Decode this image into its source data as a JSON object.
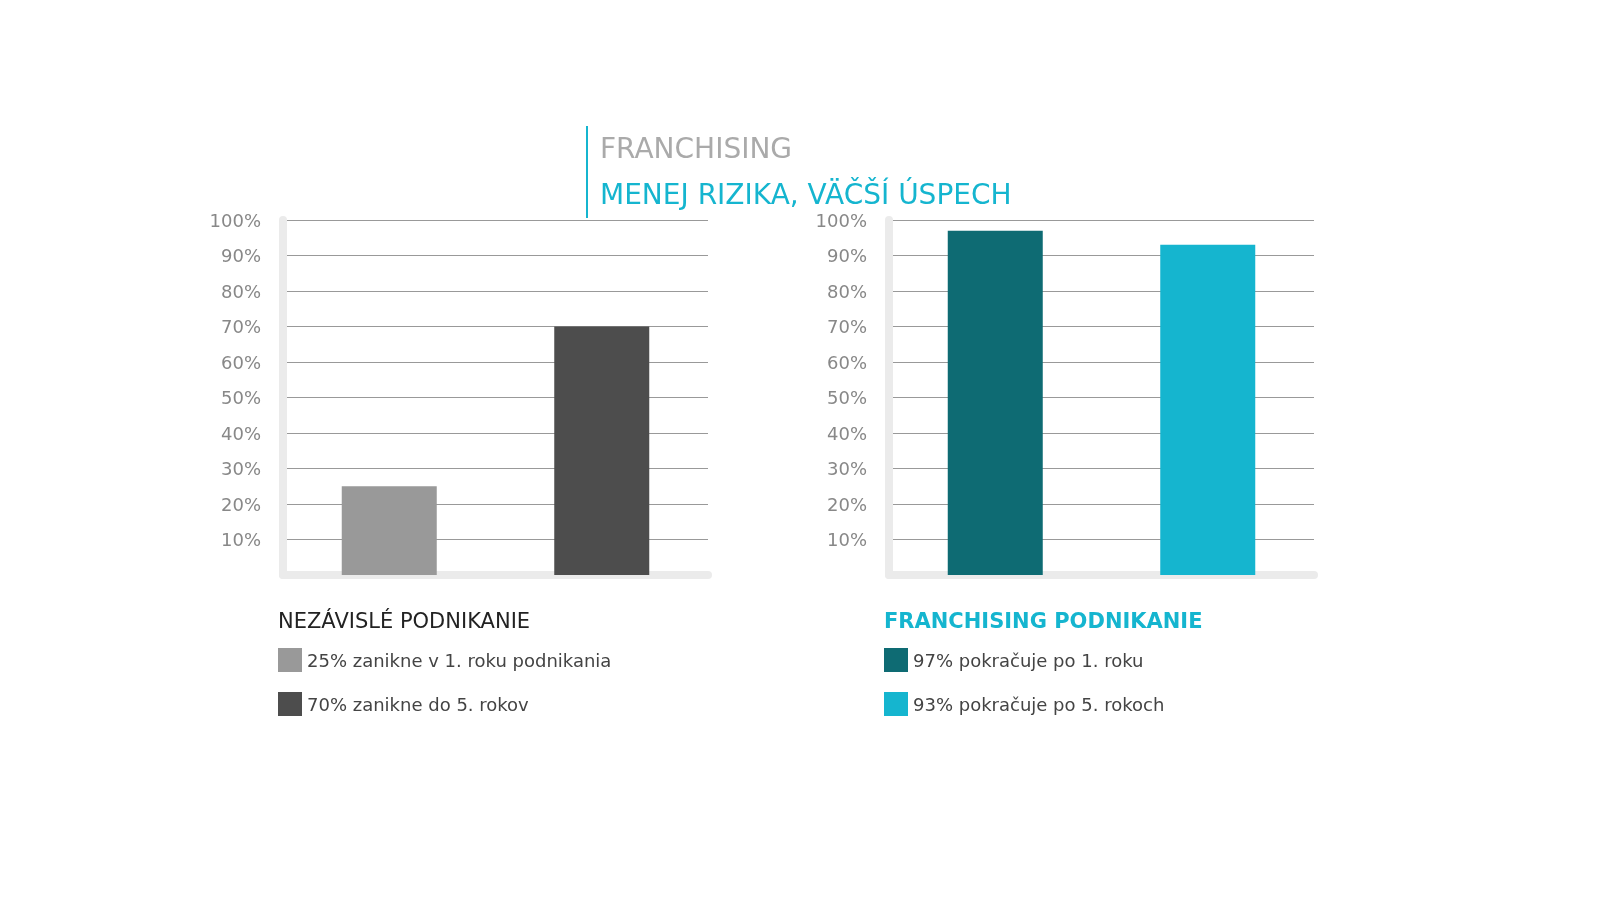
{
  "chart_data": [
    {
      "type": "bar",
      "title": "FRANCHISING",
      "subtitle": "MENEJ RIZIKA, VÄČŠÍ ÚSPECH",
      "legend_title": "NEZÁVISLÉ PODNIKANIE",
      "categories": [
        null,
        null
      ],
      "series": [
        {
          "name": "25% zanikne v 1. roku podnikania",
          "color": "#999999",
          "values": [
            25,
            null
          ]
        },
        {
          "name": "70% zanikne do 5. rokov",
          "color": "#4d4d4d",
          "values": [
            null,
            70
          ]
        }
      ],
      "ylim": [
        0,
        100
      ],
      "yticks": [
        {
          "value": 10,
          "label": "10%"
        },
        {
          "value": 20,
          "label": "20%"
        },
        {
          "value": 30,
          "label": "30%"
        },
        {
          "value": 40,
          "label": "40%"
        },
        {
          "value": 50,
          "label": "50%"
        },
        {
          "value": 60,
          "label": "60%"
        },
        {
          "value": 70,
          "label": "70%"
        },
        {
          "value": 80,
          "label": "80%"
        },
        {
          "value": 90,
          "label": "90%"
        },
        {
          "value": 100,
          "label": "100%"
        }
      ],
      "grid": "y",
      "legend": "bottom"
    },
    {
      "type": "bar",
      "legend_title": "FRANCHISING PODNIKANIE",
      "categories": [
        null,
        null
      ],
      "series": [
        {
          "name": "97% pokračuje po 1. roku",
          "color": "#0e6b73",
          "values": [
            97,
            null
          ]
        },
        {
          "name": "93% pokračuje po 5. rokoch",
          "color": "#15b5cf",
          "values": [
            null,
            93
          ]
        }
      ],
      "ylim": [
        0,
        100
      ],
      "yticks": [
        {
          "value": 10,
          "label": "10%"
        },
        {
          "value": 20,
          "label": "20%"
        },
        {
          "value": 30,
          "label": "30%"
        },
        {
          "value": 40,
          "label": "40%"
        },
        {
          "value": 50,
          "label": "50%"
        },
        {
          "value": 60,
          "label": "60%"
        },
        {
          "value": 70,
          "label": "70%"
        },
        {
          "value": 80,
          "label": "80%"
        },
        {
          "value": 90,
          "label": "90%"
        },
        {
          "value": 100,
          "label": "100%"
        }
      ],
      "grid": "y",
      "legend": "bottom"
    }
  ]
}
